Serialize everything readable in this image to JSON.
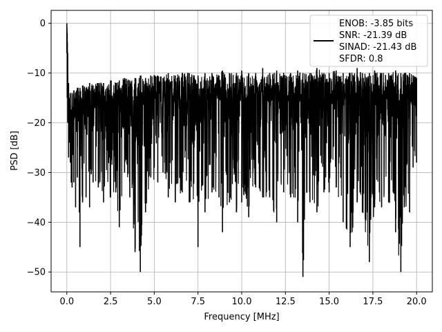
{
  "chart_data": {
    "type": "line",
    "title": "",
    "xlabel": "Frequency [MHz]",
    "ylabel": "PSD [dB]",
    "xlim": [
      -0.9,
      20.9
    ],
    "ylim": [
      -54,
      2.6
    ],
    "xticks": [
      0.0,
      2.5,
      5.0,
      7.5,
      10.0,
      12.5,
      15.0,
      17.5,
      20.0
    ],
    "xtick_labels": [
      "0.0",
      "2.5",
      "5.0",
      "7.5",
      "10.0",
      "12.5",
      "15.0",
      "17.5",
      "20.0"
    ],
    "yticks": [
      0,
      -10,
      -20,
      -30,
      -40,
      -50
    ],
    "ytick_labels": [
      "0",
      "−10",
      "−20",
      "−30",
      "−40",
      "−50"
    ],
    "grid": true,
    "legend_position": "top-right",
    "legend_lines": [
      "ENOB: -3.85 bits",
      "SNR: -21.39 dB",
      "SINAD: -21.43 dB",
      "SFDR: 0.8"
    ],
    "series_color": "#000000",
    "series": [
      {
        "x": [
          0.0,
          0.02,
          0.05,
          0.1,
          0.15,
          0.2,
          0.25,
          0.3,
          0.4,
          0.5,
          0.6,
          0.75,
          0.9,
          1.1,
          1.3,
          1.5,
          1.8,
          2.1,
          2.5,
          2.8,
          3.0,
          3.3,
          3.6,
          3.9,
          4.2,
          4.5,
          4.8,
          5.2,
          5.5,
          5.8,
          6.2,
          6.6,
          7.0,
          7.5,
          7.9,
          8.3,
          8.7,
          8.9,
          9.3,
          9.7,
          10.0,
          10.4,
          10.8,
          11.2,
          11.6,
          12.0,
          12.4,
          12.8,
          13.2,
          13.5,
          13.9,
          14.3,
          14.7,
          15.0,
          15.4,
          15.8,
          16.2,
          16.6,
          16.9,
          17.3,
          17.6,
          18.0,
          18.4,
          18.8,
          19.1,
          19.3,
          19.6,
          19.8,
          20.0
        ],
        "max": [
          0.0,
          -2.0,
          -6.0,
          -12.0,
          -15.0,
          -14.0,
          -18.0,
          -14.0,
          -13.5,
          -14.0,
          -13.0,
          -13.0,
          -12.5,
          -13.0,
          -12.0,
          -12.5,
          -12.0,
          -12.0,
          -11.5,
          -12.0,
          -11.5,
          -11.0,
          -11.5,
          -11.0,
          -10.5,
          -11.0,
          -10.5,
          -10.5,
          -11.0,
          -10.0,
          -10.5,
          -10.0,
          -10.0,
          -10.5,
          -10.0,
          -10.0,
          -10.5,
          -9.5,
          -10.0,
          -10.0,
          -9.5,
          -10.0,
          -10.0,
          -9.0,
          -10.0,
          -9.5,
          -10.0,
          -10.0,
          -9.5,
          -10.0,
          -10.0,
          -9.0,
          -10.0,
          -10.0,
          -9.5,
          -10.0,
          -10.0,
          -9.0,
          -10.0,
          -10.0,
          -9.5,
          -10.0,
          -10.0,
          -9.5,
          -10.0,
          -10.0,
          -10.0,
          -10.5,
          -11.0
        ],
        "min": [
          -6.0,
          -15.0,
          -20.0,
          -27.0,
          -24.0,
          -28.0,
          -32.0,
          -33.0,
          -32.0,
          -37.0,
          -31.0,
          -45.0,
          -36.0,
          -35.0,
          -37.0,
          -32.0,
          -33.0,
          -36.0,
          -35.0,
          -34.0,
          -41.0,
          -30.0,
          -35.0,
          -46.0,
          -50.0,
          -38.0,
          -31.0,
          -32.0,
          -30.0,
          -35.0,
          -36.0,
          -34.0,
          -36.0,
          -45.0,
          -38.0,
          -34.0,
          -35.0,
          -42.0,
          -36.0,
          -38.0,
          -36.0,
          -39.0,
          -33.0,
          -35.0,
          -35.0,
          -40.0,
          -34.0,
          -35.0,
          -40.0,
          -51.0,
          -36.0,
          -38.0,
          -34.0,
          -34.0,
          -33.0,
          -40.0,
          -45.0,
          -36.0,
          -38.0,
          -48.0,
          -37.0,
          -37.0,
          -36.0,
          -42.0,
          -50.0,
          -37.0,
          -38.0,
          -29.0,
          -28.0
        ]
      }
    ]
  }
}
